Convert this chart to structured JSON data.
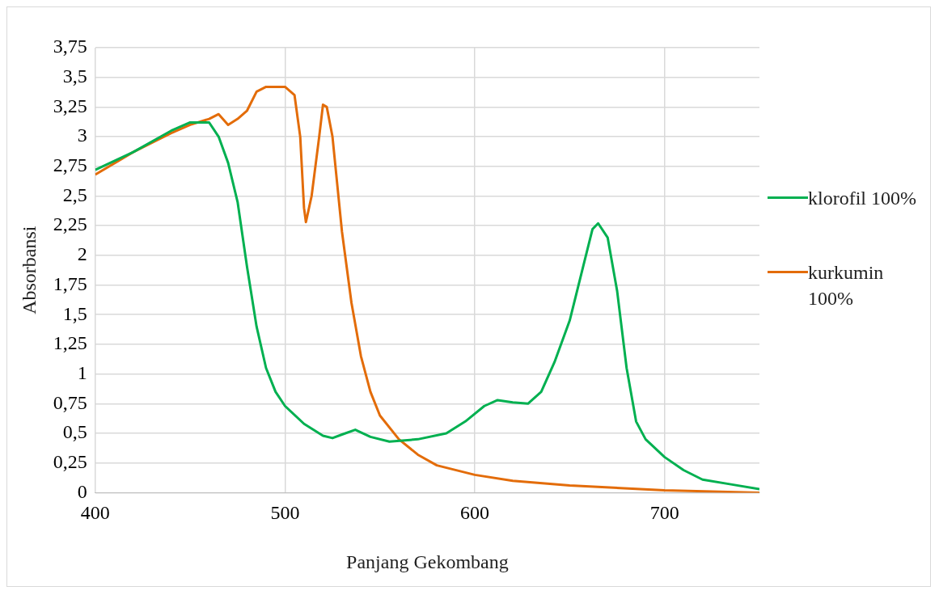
{
  "chart_data": {
    "type": "line",
    "xlabel": "Panjang Gekombang",
    "ylabel": "Absorbansi",
    "xlim": [
      400,
      750
    ],
    "xticks": [
      400,
      500,
      600,
      700
    ],
    "ylim": [
      0,
      3.75
    ],
    "yticks": [
      0,
      {
        "value": 0.25,
        "label": "0,25"
      },
      {
        "value": 0.5,
        "label": "0,5"
      },
      {
        "value": 0.75,
        "label": "0,75"
      },
      1,
      {
        "value": 1.25,
        "label": "1,25"
      },
      {
        "value": 1.5,
        "label": "1,5"
      },
      {
        "value": 1.75,
        "label": "1,75"
      },
      2,
      {
        "value": 2.25,
        "label": "2,25"
      },
      {
        "value": 2.5,
        "label": "2,5"
      },
      {
        "value": 2.75,
        "label": "2,75"
      },
      3,
      {
        "value": 3.25,
        "label": "3,25"
      },
      {
        "value": 3.5,
        "label": "3,5"
      },
      {
        "value": 3.75,
        "label": "3,75"
      }
    ],
    "grid": true,
    "legend": "right",
    "marker": "none",
    "line_style": "solid",
    "series": [
      {
        "name": "klorofil 100%",
        "color": "#00b050",
        "x": [
          400,
          420,
          440,
          450,
          460,
          465,
          470,
          475,
          480,
          485,
          490,
          495,
          500,
          510,
          520,
          525,
          530,
          537,
          545,
          555,
          570,
          585,
          595,
          605,
          612,
          620,
          628,
          635,
          642,
          650,
          657,
          662,
          665,
          670,
          675,
          680,
          685,
          690,
          700,
          710,
          720,
          735,
          750
        ],
        "values": [
          2.72,
          2.87,
          3.05,
          3.12,
          3.12,
          3.0,
          2.78,
          2.45,
          1.9,
          1.4,
          1.05,
          0.85,
          0.73,
          0.58,
          0.48,
          0.46,
          0.49,
          0.53,
          0.47,
          0.43,
          0.45,
          0.5,
          0.6,
          0.73,
          0.78,
          0.76,
          0.75,
          0.85,
          1.1,
          1.45,
          1.9,
          2.22,
          2.27,
          2.15,
          1.7,
          1.05,
          0.6,
          0.45,
          0.3,
          0.19,
          0.11,
          0.07,
          0.03
        ]
      },
      {
        "name": "kurkumin 100%",
        "color": "#e36c09",
        "x": [
          400,
          420,
          440,
          450,
          460,
          465,
          470,
          475,
          480,
          485,
          490,
          495,
          500,
          505,
          508,
          510,
          511,
          514,
          518,
          520,
          522,
          525,
          530,
          535,
          540,
          545,
          550,
          560,
          570,
          580,
          600,
          620,
          650,
          700,
          750
        ],
        "values": [
          2.68,
          2.87,
          3.03,
          3.1,
          3.15,
          3.19,
          3.1,
          3.15,
          3.22,
          3.38,
          3.42,
          3.42,
          3.42,
          3.35,
          3.0,
          2.4,
          2.28,
          2.5,
          3.0,
          3.27,
          3.25,
          3.0,
          2.2,
          1.6,
          1.15,
          0.85,
          0.65,
          0.45,
          0.32,
          0.23,
          0.15,
          0.1,
          0.06,
          0.02,
          0
        ]
      }
    ]
  }
}
